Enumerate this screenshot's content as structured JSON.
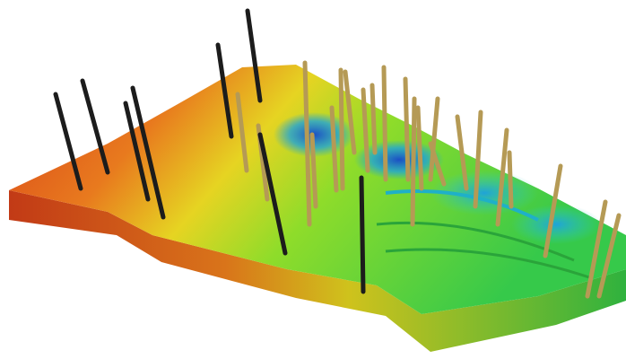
{
  "scene": {
    "background": "#ffffff",
    "surface_colors": {
      "high": "#d8401a",
      "mid_high": "#e87a1e",
      "mid": "#e6d422",
      "mid_low": "#8fdc2a",
      "low": "#36c94a",
      "deep": "#1fa3d8",
      "deepest": "#1b4fc4"
    },
    "well_colors": {
      "dark": "#1c1c1c",
      "tan": "#b59a55"
    }
  }
}
